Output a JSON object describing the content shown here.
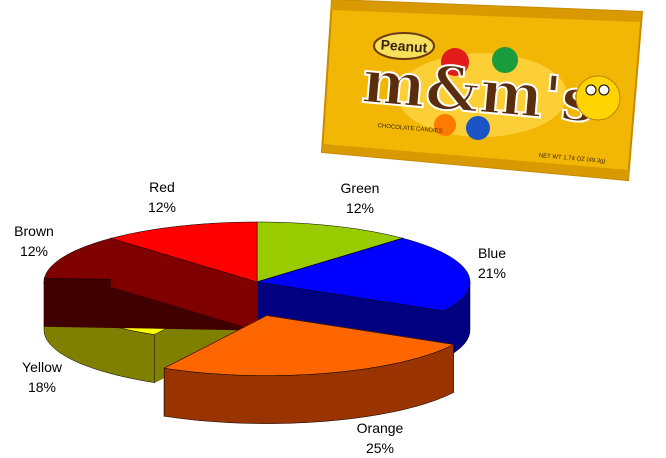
{
  "package": {
    "brand": "m&m's",
    "variety": "Peanut",
    "caption": "CHOCOLATE CANDIES",
    "weight": "NET WT 1.74 OZ (49.3g)"
  },
  "chart_data": {
    "type": "pie",
    "categories": [
      "Green",
      "Blue",
      "Orange",
      "Yellow",
      "Brown",
      "Red"
    ],
    "values": [
      12,
      21,
      25,
      18,
      12,
      12
    ],
    "value_labels": [
      "12%",
      "21%",
      "25%",
      "18%",
      "12%",
      "12%"
    ],
    "colors": [
      "#99cc00",
      "#0000ff",
      "#ff6600",
      "#ffff00",
      "#800000",
      "#ff0000"
    ],
    "side_colors": [
      "#4d6600",
      "#000080",
      "#993300",
      "#808000",
      "#400000",
      "#800000"
    ],
    "explode": [
      false,
      false,
      true,
      false,
      false,
      false
    ]
  }
}
